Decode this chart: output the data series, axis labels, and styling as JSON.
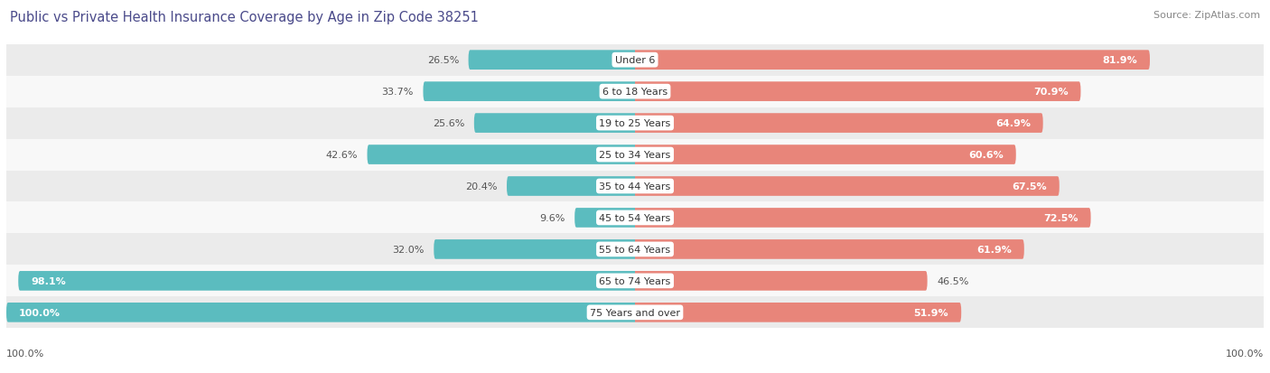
{
  "title": "Public vs Private Health Insurance Coverage by Age in Zip Code 38251",
  "source": "Source: ZipAtlas.com",
  "categories": [
    "Under 6",
    "6 to 18 Years",
    "19 to 25 Years",
    "25 to 34 Years",
    "35 to 44 Years",
    "45 to 54 Years",
    "55 to 64 Years",
    "65 to 74 Years",
    "75 Years and over"
  ],
  "public_values": [
    26.5,
    33.7,
    25.6,
    42.6,
    20.4,
    9.6,
    32.0,
    98.1,
    100.0
  ],
  "private_values": [
    81.9,
    70.9,
    64.9,
    60.6,
    67.5,
    72.5,
    61.9,
    46.5,
    51.9
  ],
  "public_color": "#5bbcbf",
  "private_color": "#e8857a",
  "bar_height": 0.62,
  "max_value": 100.0,
  "title_fontsize": 10.5,
  "label_fontsize": 8,
  "category_fontsize": 8,
  "source_fontsize": 8,
  "legend_fontsize": 8.5,
  "background_color": "#ffffff",
  "row_bg_even": "#ebebeb",
  "row_bg_odd": "#f8f8f8"
}
